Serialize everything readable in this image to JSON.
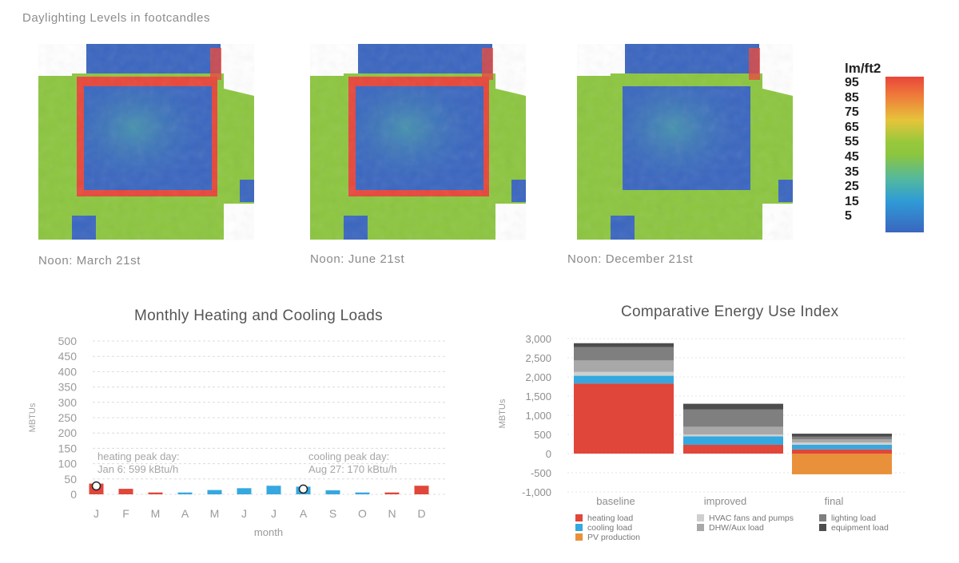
{
  "page_title": "Daylighting Levels in footcandles",
  "daylight": {
    "captions": [
      "Noon: March 21st",
      "Noon: June 21st",
      "Noon: December 21st"
    ],
    "legend_unit": "lm/ft2",
    "legend_ticks": [
      "95",
      "85",
      "75",
      "65",
      "55",
      "45",
      "35",
      "25",
      "15",
      "5"
    ]
  },
  "colors": {
    "heating": "#e0463a",
    "cooling": "#35a8df",
    "pv": "#e8913a",
    "hvac": "#cfcfcf",
    "dhw": "#a8a8a8",
    "lighting": "#7f7f7f",
    "equipment": "#4d4d4d",
    "heat_high": "#e8463a",
    "heat_mid": "#8cc63f",
    "heat_low": "#3a66c0"
  },
  "chart_data": [
    {
      "type": "bar",
      "title": "Monthly Heating and Cooling Loads",
      "xlabel": "month",
      "ylabel": "MBTUs",
      "ylim": [
        0,
        500
      ],
      "yticks": [
        "500",
        "450",
        "400",
        "350",
        "300",
        "250",
        "200",
        "150",
        "100",
        "50",
        "0"
      ],
      "categories": [
        "J",
        "F",
        "M",
        "A",
        "M",
        "J",
        "J",
        "A",
        "S",
        "O",
        "N",
        "D"
      ],
      "series": [
        {
          "name": "heating",
          "values": [
            35,
            18,
            6,
            0,
            0,
            0,
            0,
            0,
            0,
            0,
            6,
            28
          ]
        },
        {
          "name": "cooling",
          "values": [
            0,
            0,
            0,
            6,
            14,
            20,
            28,
            25,
            13,
            6,
            0,
            0
          ]
        }
      ],
      "annotations": [
        {
          "line1": "heating peak day:",
          "line2": "Jan 6: 599 kBtu/h"
        },
        {
          "line1": "cooling peak day:",
          "line2": "Aug 27: 170 kBtu/h"
        }
      ],
      "grid": true
    },
    {
      "type": "bar",
      "title": "Comparative Energy Use Index",
      "ylabel": "MBTUs",
      "ylim": [
        -1000,
        3000
      ],
      "yticks": [
        "3,000",
        "2,500",
        "2,000",
        "1,500",
        "1,000",
        "500",
        "0",
        "-500",
        "-1,000"
      ],
      "categories": [
        "baseline",
        "improved",
        "final"
      ],
      "series": [
        {
          "name": "heating load",
          "values": [
            1830,
            230,
            110
          ]
        },
        {
          "name": "cooling load",
          "values": [
            200,
            220,
            120
          ]
        },
        {
          "name": "HVAC fans and pumps",
          "values": [
            100,
            50,
            60
          ]
        },
        {
          "name": "DHW/Aux load",
          "values": [
            300,
            200,
            80
          ]
        },
        {
          "name": "lighting load",
          "values": [
            350,
            450,
            70
          ]
        },
        {
          "name": "equipment load",
          "values": [
            100,
            150,
            80
          ]
        },
        {
          "name": "PV production",
          "values": [
            0,
            0,
            -540
          ]
        }
      ],
      "legend": [
        "heating load",
        "cooling load",
        "PV production",
        "HVAC fans and pumps",
        "DHW/Aux load",
        "lighting load",
        "equipment load"
      ],
      "grid": true
    }
  ]
}
